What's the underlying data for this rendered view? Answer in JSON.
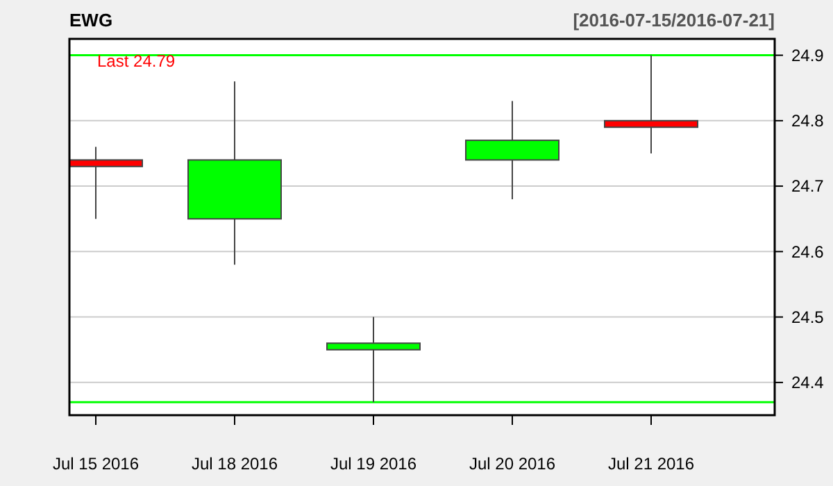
{
  "chart_data": {
    "type": "candlestick",
    "title": "EWG",
    "subtitle": "[2016-07-15/2016-07-21]",
    "categories": [
      "Jul 15 2016",
      "Jul 18 2016",
      "Jul 19 2016",
      "Jul 20 2016",
      "Jul 21 2016"
    ],
    "ohlc": [
      [
        24.74,
        24.76,
        24.65,
        24.73
      ],
      [
        24.65,
        24.86,
        24.58,
        24.74
      ],
      [
        24.45,
        24.5,
        24.37,
        24.46
      ],
      [
        24.74,
        24.83,
        24.68,
        24.77
      ],
      [
        24.8,
        24.9,
        24.75,
        24.79
      ]
    ],
    "colors": [
      "#ff0000",
      "#00ff00",
      "#00ff00",
      "#00ff00",
      "#ff0000"
    ],
    "ylim": [
      24.35,
      24.925
    ],
    "yticks": [
      24.4,
      24.5,
      24.6,
      24.7,
      24.8,
      24.9
    ],
    "grid": "y",
    "ref_lines": [
      {
        "axis": "y",
        "value": 24.9,
        "color": "#00ff00"
      },
      {
        "axis": "y",
        "value": 24.37,
        "color": "#00ff00"
      }
    ],
    "annotations": [
      "Last 24.79"
    ]
  }
}
